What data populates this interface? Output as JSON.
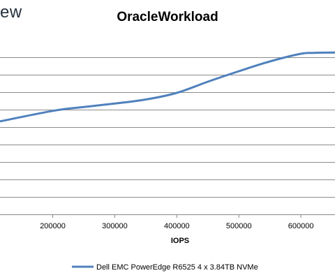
{
  "brand_text": "ew",
  "chart_data": {
    "type": "line",
    "title": "OracleWorkload",
    "xlabel": "IOPS",
    "ylabel": "",
    "x_ticks": [
      200000,
      300000,
      400000,
      500000,
      600000
    ],
    "xlim": [
      115000,
      655000
    ],
    "ylim": [
      0,
      10
    ],
    "y_gridlines": [
      0,
      1,
      2,
      3,
      4,
      5,
      6,
      7,
      8,
      9
    ],
    "grid": true,
    "legend_position": "bottom",
    "series": [
      {
        "name": "Dell EMC PowerEdge R6525 4 x 3.84TB NVMe",
        "color": "#4F81BD",
        "points": [
          [
            115000,
            5.33
          ],
          [
            200000,
            5.93
          ],
          [
            250000,
            6.15
          ],
          [
            300000,
            6.35
          ],
          [
            350000,
            6.58
          ],
          [
            400000,
            6.96
          ],
          [
            450000,
            7.6
          ],
          [
            500000,
            8.2
          ],
          [
            550000,
            8.76
          ],
          [
            600000,
            9.2
          ],
          [
            620000,
            9.25
          ],
          [
            655000,
            9.27
          ]
        ]
      }
    ]
  }
}
